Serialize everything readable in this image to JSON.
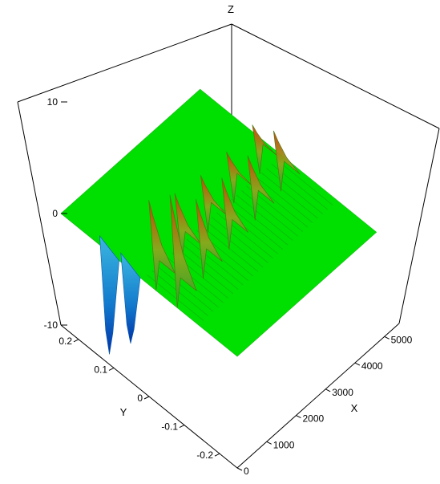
{
  "chart_data": {
    "type": "surface",
    "title": "",
    "xlabel": "X",
    "ylabel": "Y",
    "zlabel": "Z",
    "xlim": [
      0,
      5500
    ],
    "ylim": [
      -0.25,
      0.25
    ],
    "zlim": [
      -10,
      10
    ],
    "x_ticks": [
      0,
      1000,
      2000,
      3000,
      4000,
      5000
    ],
    "y_ticks": [
      -0.2,
      -0.1,
      0,
      0.1,
      0.2
    ],
    "z_ticks": [
      -10,
      0,
      10
    ],
    "x_tick_labels": [
      "0",
      "1000",
      "2000",
      "3000",
      "4000",
      "5000"
    ],
    "y_tick_labels": [
      "-0.2",
      "-0.1",
      "0",
      "0.1",
      "0.2"
    ],
    "z_tick_labels": [
      "-10",
      "0",
      "10"
    ],
    "colormap": [
      "#0033cc",
      "#00aaff",
      "#00dd00",
      "#88bb00",
      "#ff2200"
    ],
    "baseline_color": "#00e000",
    "grid": false,
    "peaks": [
      {
        "x": 0,
        "y": -0.08,
        "z": 9.5
      },
      {
        "x": 0,
        "y": -0.02,
        "z": 7.5
      },
      {
        "x": 1000,
        "y": -0.07,
        "z": 6.5
      },
      {
        "x": 1000,
        "y": -0.01,
        "z": 5.5
      },
      {
        "x": 2000,
        "y": -0.06,
        "z": 5.8
      },
      {
        "x": 2000,
        "y": 0.0,
        "z": 4.5
      },
      {
        "x": 3000,
        "y": -0.05,
        "z": 5.2
      },
      {
        "x": 3000,
        "y": 0.01,
        "z": 4.0
      },
      {
        "x": 4000,
        "y": -0.04,
        "z": 4.8
      },
      {
        "x": 4000,
        "y": 0.02,
        "z": 3.8
      }
    ],
    "troughs": [
      {
        "x": 0,
        "y": 0.12,
        "z": -9.5
      },
      {
        "x": 0,
        "y": 0.06,
        "z": -7.0
      }
    ]
  }
}
